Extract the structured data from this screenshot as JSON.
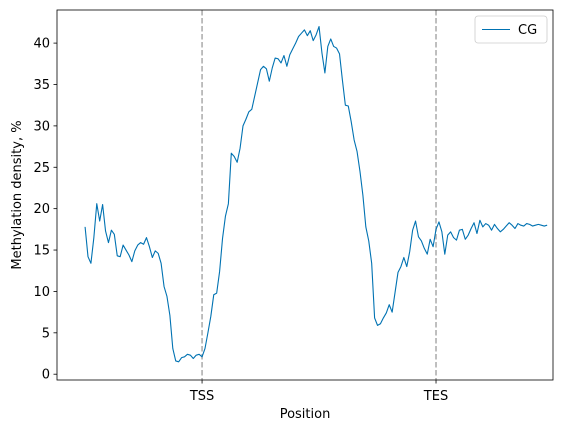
{
  "chart_data": {
    "type": "line",
    "title": "",
    "xlabel": "Position",
    "ylabel": "Methylation density, %",
    "ylim": [
      -0.7,
      44
    ],
    "yticks": [
      0,
      5,
      10,
      15,
      20,
      25,
      30,
      35,
      40
    ],
    "xlim": [
      -48,
      800
    ],
    "xticks": [
      {
        "label": "TSS",
        "x": 200
      },
      {
        "label": "TES",
        "x": 600
      }
    ],
    "vlines": [
      200,
      600
    ],
    "grid": false,
    "legend": "top-right",
    "series": [
      {
        "name": "CG",
        "color": "#0072b2",
        "x": [
          0,
          5,
          10,
          15,
          20,
          25,
          30,
          35,
          40,
          45,
          50,
          55,
          60,
          65,
          70,
          75,
          80,
          85,
          90,
          95,
          100,
          105,
          110,
          115,
          120,
          125,
          130,
          135,
          140,
          145,
          150,
          155,
          160,
          165,
          170,
          175,
          180,
          185,
          190,
          195,
          200,
          205,
          210,
          215,
          220,
          225,
          230,
          235,
          240,
          245,
          250,
          255,
          260,
          265,
          270,
          275,
          280,
          285,
          290,
          295,
          300,
          305,
          310,
          315,
          320,
          325,
          330,
          335,
          340,
          345,
          350,
          355,
          360,
          365,
          370,
          375,
          380,
          385,
          390,
          395,
          400,
          405,
          410,
          415,
          420,
          425,
          430,
          435,
          440,
          445,
          450,
          455,
          460,
          465,
          470,
          475,
          480,
          485,
          490,
          495,
          500,
          505,
          510,
          515,
          520,
          525,
          530,
          535,
          540,
          545,
          550,
          555,
          560,
          565,
          570,
          575,
          580,
          585,
          590,
          595,
          600,
          605,
          610,
          615,
          620,
          625,
          630,
          635,
          640,
          645,
          650,
          655,
          660,
          665,
          670,
          675,
          680,
          685,
          690,
          695,
          700,
          705,
          710,
          715,
          720,
          725,
          730,
          735,
          740,
          745,
          750,
          755,
          760,
          765,
          770,
          775,
          780,
          785,
          790
        ],
        "y": [
          17.8,
          14.2,
          13.4,
          16.5,
          20.6,
          18.5,
          20.5,
          17.3,
          15.9,
          17.4,
          16.9,
          14.3,
          14.2,
          15.6,
          15.0,
          14.4,
          13.6,
          14.9,
          15.6,
          15.9,
          15.7,
          16.5,
          15.4,
          14.1,
          14.9,
          14.6,
          13.4,
          10.6,
          9.4,
          7.1,
          3.1,
          1.6,
          1.5,
          2.0,
          2.1,
          2.4,
          2.3,
          1.9,
          2.3,
          2.4,
          2.1,
          3.1,
          5.0,
          7.0,
          9.6,
          9.8,
          12.4,
          16.4,
          19.1,
          20.6,
          26.7,
          26.3,
          25.6,
          27.3,
          30.0,
          30.8,
          31.7,
          32.0,
          33.6,
          35.2,
          36.8,
          37.2,
          36.9,
          35.4,
          37.0,
          38.2,
          38.1,
          37.6,
          38.5,
          37.2,
          38.6,
          39.3,
          40.0,
          40.8,
          41.2,
          41.6,
          40.9,
          41.5,
          40.3,
          41.0,
          42.0,
          38.8,
          36.4,
          39.6,
          40.5,
          39.6,
          39.4,
          38.7,
          35.5,
          32.5,
          32.4,
          30.5,
          28.3,
          26.9,
          24.5,
          21.6,
          17.8,
          16.1,
          13.4,
          6.8,
          5.9,
          6.1,
          6.8,
          7.4,
          8.4,
          7.5,
          9.9,
          12.3,
          13.0,
          14.1,
          13.0,
          14.8,
          17.4,
          18.5,
          16.6,
          16.1,
          15.2,
          14.5,
          16.3,
          15.4,
          17.5,
          18.4,
          17.2,
          14.5,
          16.8,
          17.2,
          16.5,
          16.2,
          17.4,
          17.5,
          16.3,
          16.8,
          17.6,
          18.3,
          17.0,
          18.6,
          17.8,
          18.2,
          18.0,
          17.4,
          18.1,
          17.6,
          17.2,
          17.5,
          17.9,
          18.3,
          18.0,
          17.6,
          18.2,
          18.0,
          17.9,
          18.2,
          18.1,
          17.9,
          18.0,
          18.1,
          18.0,
          17.9,
          18.0
        ]
      }
    ]
  }
}
